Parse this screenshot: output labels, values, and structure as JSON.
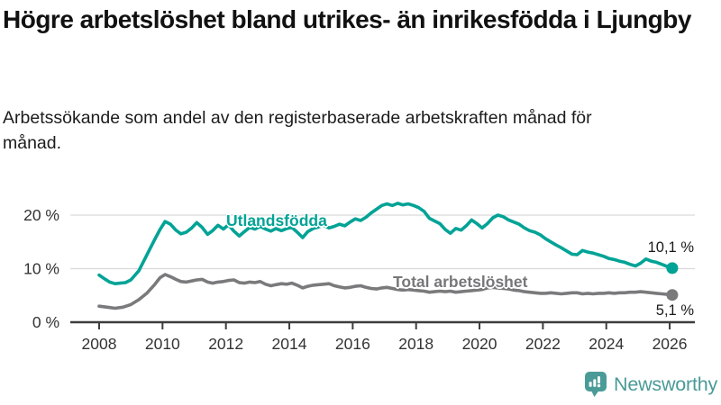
{
  "header": {
    "title": "Högre arbetslöshet bland utrikes- än inrikesfödda i Ljungby",
    "subtitle": "Arbetssökande som andel av den registerbaserade arbetskraften månad för månad."
  },
  "chart_data": {
    "type": "line",
    "title": "Högre arbetslöshet bland utrikes- än inrikesfödda i Ljungby",
    "unit": "%",
    "grid": true,
    "legend_position": "inline-labels",
    "x_axis": {
      "ticks": [
        "2008",
        "2010",
        "2012",
        "2014",
        "2016",
        "2018",
        "2020",
        "2022",
        "2024",
        "2026"
      ],
      "range": [
        2007.1,
        2026.8
      ]
    },
    "y_axis": {
      "range": [
        0,
        24
      ],
      "ticks": [
        {
          "value": 0,
          "label": "0 %"
        },
        {
          "value": 10,
          "label": "10 %"
        },
        {
          "value": 20,
          "label": "20 %"
        }
      ]
    },
    "colors": {
      "utlandsfodda": "#00a396",
      "total": "#7a7a7c",
      "gridline": "#d9d9d9",
      "axis": "#3d3d3d",
      "axis_text": "#333333"
    },
    "series": [
      {
        "name": "Utlandsfödda",
        "color": "#00a396",
        "end_label": "10,1 %",
        "end_value": 10.1,
        "points": [
          [
            2008,
            8.8
          ],
          [
            2008.17,
            8.1
          ],
          [
            2008.33,
            7.5
          ],
          [
            2008.5,
            7.2
          ],
          [
            2008.67,
            7.3
          ],
          [
            2008.83,
            7.4
          ],
          [
            2009,
            7.9
          ],
          [
            2009.25,
            9.6
          ],
          [
            2009.5,
            12.5
          ],
          [
            2009.75,
            15.4
          ],
          [
            2009.92,
            17.3
          ],
          [
            2010.08,
            18.8
          ],
          [
            2010.25,
            18.3
          ],
          [
            2010.42,
            17.2
          ],
          [
            2010.58,
            16.5
          ],
          [
            2010.75,
            16.8
          ],
          [
            2010.92,
            17.6
          ],
          [
            2011.08,
            18.6
          ],
          [
            2011.25,
            17.7
          ],
          [
            2011.42,
            16.4
          ],
          [
            2011.58,
            17.1
          ],
          [
            2011.75,
            18.1
          ],
          [
            2011.92,
            17.4
          ],
          [
            2012.08,
            18.2
          ],
          [
            2012.25,
            17.0
          ],
          [
            2012.42,
            16.1
          ],
          [
            2012.58,
            16.9
          ],
          [
            2012.75,
            17.7
          ],
          [
            2012.92,
            17.4
          ],
          [
            2013.08,
            17.9
          ],
          [
            2013.25,
            17.4
          ],
          [
            2013.42,
            17.0
          ],
          [
            2013.58,
            17.5
          ],
          [
            2013.75,
            17.1
          ],
          [
            2013.92,
            17.5
          ],
          [
            2014.08,
            17.7
          ],
          [
            2014.25,
            16.8
          ],
          [
            2014.42,
            15.8
          ],
          [
            2014.58,
            16.9
          ],
          [
            2014.75,
            17.5
          ],
          [
            2014.92,
            17.8
          ],
          [
            2015.08,
            18.1
          ],
          [
            2015.25,
            17.6
          ],
          [
            2015.42,
            17.9
          ],
          [
            2015.58,
            18.3
          ],
          [
            2015.75,
            18.0
          ],
          [
            2015.92,
            18.7
          ],
          [
            2016.08,
            19.3
          ],
          [
            2016.25,
            19.0
          ],
          [
            2016.42,
            19.6
          ],
          [
            2016.58,
            20.4
          ],
          [
            2016.75,
            21.1
          ],
          [
            2016.92,
            21.8
          ],
          [
            2017.08,
            22.1
          ],
          [
            2017.25,
            21.8
          ],
          [
            2017.42,
            22.2
          ],
          [
            2017.58,
            21.9
          ],
          [
            2017.75,
            22.1
          ],
          [
            2017.92,
            21.8
          ],
          [
            2018.08,
            21.4
          ],
          [
            2018.25,
            20.7
          ],
          [
            2018.42,
            19.4
          ],
          [
            2018.58,
            18.9
          ],
          [
            2018.75,
            18.4
          ],
          [
            2018.92,
            17.3
          ],
          [
            2019.08,
            16.6
          ],
          [
            2019.25,
            17.5
          ],
          [
            2019.42,
            17.2
          ],
          [
            2019.58,
            18.0
          ],
          [
            2019.75,
            19.1
          ],
          [
            2019.92,
            18.4
          ],
          [
            2020.08,
            17.6
          ],
          [
            2020.25,
            18.4
          ],
          [
            2020.42,
            19.5
          ],
          [
            2020.58,
            20.0
          ],
          [
            2020.75,
            19.7
          ],
          [
            2020.92,
            19.1
          ],
          [
            2021.08,
            18.7
          ],
          [
            2021.25,
            18.3
          ],
          [
            2021.42,
            17.6
          ],
          [
            2021.58,
            17.1
          ],
          [
            2021.75,
            16.8
          ],
          [
            2021.92,
            16.3
          ],
          [
            2022.08,
            15.6
          ],
          [
            2022.25,
            15.0
          ],
          [
            2022.42,
            14.4
          ],
          [
            2022.58,
            13.9
          ],
          [
            2022.75,
            13.3
          ],
          [
            2022.92,
            12.7
          ],
          [
            2023.08,
            12.6
          ],
          [
            2023.25,
            13.4
          ],
          [
            2023.42,
            13.1
          ],
          [
            2023.58,
            12.9
          ],
          [
            2023.75,
            12.6
          ],
          [
            2023.92,
            12.3
          ],
          [
            2024.08,
            11.9
          ],
          [
            2024.25,
            11.7
          ],
          [
            2024.42,
            11.4
          ],
          [
            2024.58,
            11.2
          ],
          [
            2024.75,
            10.8
          ],
          [
            2024.92,
            10.5
          ],
          [
            2025.08,
            11.0
          ],
          [
            2025.25,
            11.8
          ],
          [
            2025.42,
            11.4
          ],
          [
            2025.58,
            11.2
          ],
          [
            2025.75,
            10.8
          ],
          [
            2025.92,
            10.4
          ],
          [
            2026.08,
            10.1
          ]
        ]
      },
      {
        "name": "Total arbetslöshet",
        "color": "#7a7a7c",
        "end_label": "5,1 %",
        "end_value": 5.1,
        "points": [
          [
            2008,
            3.0
          ],
          [
            2008.25,
            2.8
          ],
          [
            2008.5,
            2.6
          ],
          [
            2008.75,
            2.8
          ],
          [
            2009,
            3.3
          ],
          [
            2009.25,
            4.2
          ],
          [
            2009.5,
            5.4
          ],
          [
            2009.75,
            7.0
          ],
          [
            2009.92,
            8.3
          ],
          [
            2010.08,
            8.9
          ],
          [
            2010.25,
            8.5
          ],
          [
            2010.42,
            8.0
          ],
          [
            2010.58,
            7.6
          ],
          [
            2010.75,
            7.5
          ],
          [
            2010.92,
            7.7
          ],
          [
            2011.08,
            7.9
          ],
          [
            2011.25,
            8.0
          ],
          [
            2011.42,
            7.5
          ],
          [
            2011.58,
            7.3
          ],
          [
            2011.75,
            7.5
          ],
          [
            2011.92,
            7.6
          ],
          [
            2012.08,
            7.8
          ],
          [
            2012.25,
            7.9
          ],
          [
            2012.42,
            7.4
          ],
          [
            2012.58,
            7.3
          ],
          [
            2012.75,
            7.5
          ],
          [
            2012.92,
            7.4
          ],
          [
            2013.08,
            7.6
          ],
          [
            2013.25,
            7.1
          ],
          [
            2013.42,
            6.8
          ],
          [
            2013.58,
            7.0
          ],
          [
            2013.75,
            7.2
          ],
          [
            2013.92,
            7.1
          ],
          [
            2014.08,
            7.3
          ],
          [
            2014.25,
            6.9
          ],
          [
            2014.42,
            6.4
          ],
          [
            2014.58,
            6.7
          ],
          [
            2014.75,
            6.9
          ],
          [
            2014.92,
            7.0
          ],
          [
            2015.08,
            7.1
          ],
          [
            2015.25,
            7.2
          ],
          [
            2015.42,
            6.8
          ],
          [
            2015.58,
            6.6
          ],
          [
            2015.75,
            6.4
          ],
          [
            2015.92,
            6.5
          ],
          [
            2016.08,
            6.7
          ],
          [
            2016.25,
            6.8
          ],
          [
            2016.42,
            6.5
          ],
          [
            2016.58,
            6.3
          ],
          [
            2016.75,
            6.2
          ],
          [
            2016.92,
            6.4
          ],
          [
            2017.08,
            6.5
          ],
          [
            2017.25,
            6.3
          ],
          [
            2017.42,
            6.1
          ],
          [
            2017.58,
            6.0
          ],
          [
            2017.75,
            6.1
          ],
          [
            2017.92,
            6.0
          ],
          [
            2018.08,
            5.9
          ],
          [
            2018.25,
            5.8
          ],
          [
            2018.42,
            5.6
          ],
          [
            2018.58,
            5.7
          ],
          [
            2018.75,
            5.8
          ],
          [
            2018.92,
            5.7
          ],
          [
            2019.08,
            5.8
          ],
          [
            2019.25,
            5.6
          ],
          [
            2019.42,
            5.7
          ],
          [
            2019.58,
            5.8
          ],
          [
            2019.75,
            5.9
          ],
          [
            2019.92,
            6.0
          ],
          [
            2020.08,
            6.1
          ],
          [
            2020.25,
            6.4
          ],
          [
            2020.42,
            6.5
          ],
          [
            2020.58,
            6.4
          ],
          [
            2020.75,
            6.3
          ],
          [
            2020.92,
            6.2
          ],
          [
            2021.08,
            6.0
          ],
          [
            2021.25,
            5.9
          ],
          [
            2021.42,
            5.7
          ],
          [
            2021.58,
            5.6
          ],
          [
            2021.75,
            5.5
          ],
          [
            2021.92,
            5.4
          ],
          [
            2022.08,
            5.4
          ],
          [
            2022.25,
            5.5
          ],
          [
            2022.42,
            5.4
          ],
          [
            2022.58,
            5.3
          ],
          [
            2022.75,
            5.4
          ],
          [
            2022.92,
            5.5
          ],
          [
            2023.08,
            5.5
          ],
          [
            2023.25,
            5.3
          ],
          [
            2023.42,
            5.4
          ],
          [
            2023.58,
            5.3
          ],
          [
            2023.75,
            5.4
          ],
          [
            2023.92,
            5.4
          ],
          [
            2024.08,
            5.5
          ],
          [
            2024.25,
            5.4
          ],
          [
            2024.42,
            5.5
          ],
          [
            2024.58,
            5.5
          ],
          [
            2024.75,
            5.6
          ],
          [
            2024.92,
            5.6
          ],
          [
            2025.08,
            5.7
          ],
          [
            2025.25,
            5.6
          ],
          [
            2025.42,
            5.5
          ],
          [
            2025.58,
            5.4
          ],
          [
            2025.75,
            5.3
          ],
          [
            2025.92,
            5.2
          ],
          [
            2026.08,
            5.1
          ]
        ]
      }
    ]
  },
  "branding": {
    "wordmark": "Newsworthy",
    "logo_color": "#4a9b98"
  }
}
